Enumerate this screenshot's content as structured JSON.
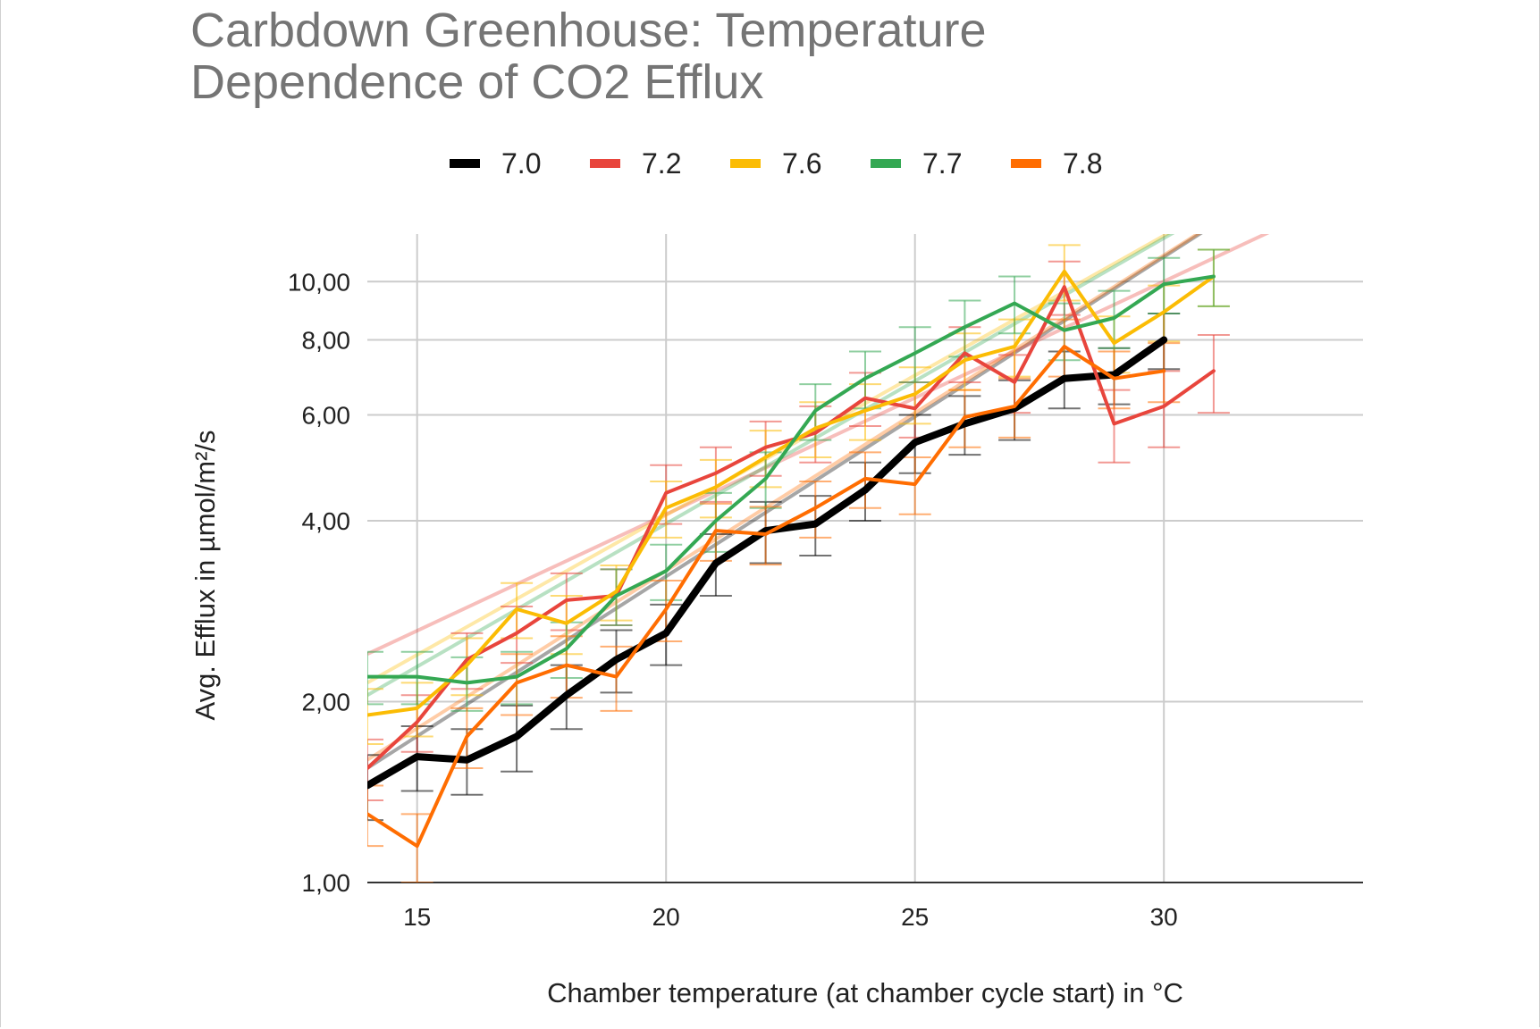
{
  "chart_data": {
    "type": "line",
    "title_lines": [
      "Carbdown Greenhouse: Temperature",
      "Dependence of CO2 Efflux"
    ],
    "xlabel": "Chamber temperature (at chamber cycle start) in °C",
    "ylabel": "Avg. Efflux in µmol/m²/s",
    "x_scale": "linear",
    "y_scale": "log",
    "xlim": [
      14,
      34
    ],
    "ylim": [
      1.0,
      12.0
    ],
    "x_ticks": [
      15,
      20,
      25,
      30
    ],
    "x_tick_labels": [
      "15",
      "20",
      "25",
      "30"
    ],
    "y_ticks": [
      1,
      2,
      4,
      6,
      8,
      10
    ],
    "y_tick_labels": [
      "1,00",
      "2,00",
      "4,00",
      "6,00",
      "8,00",
      "10,00"
    ],
    "legend_position": "top",
    "series": [
      {
        "name": "7.0",
        "color": "#000000",
        "x": [
          14,
          15,
          16,
          17,
          18,
          19,
          20,
          21,
          22,
          23,
          24,
          25,
          26,
          27,
          28,
          29,
          30
        ],
        "values": [
          1.45,
          1.62,
          1.6,
          1.75,
          2.05,
          2.35,
          2.6,
          3.4,
          3.85,
          3.95,
          4.5,
          5.4,
          5.8,
          6.15,
          6.9,
          7.0,
          8.0
        ],
        "error": [
          0.18,
          0.2,
          0.2,
          0.22,
          0.25,
          0.28,
          0.3,
          0.4,
          0.45,
          0.45,
          0.5,
          0.6,
          0.65,
          0.7,
          0.75,
          0.75,
          0.85
        ],
        "trend": [
          1.55,
          17.94
        ]
      },
      {
        "name": "7.2",
        "color": "#e8453c",
        "x": [
          14,
          15,
          16,
          17,
          18,
          19,
          20,
          21,
          22,
          23,
          24,
          25,
          26,
          27,
          28,
          29,
          30,
          31
        ],
        "values": [
          1.55,
          1.85,
          2.35,
          2.6,
          2.95,
          3.0,
          4.45,
          4.8,
          5.3,
          5.6,
          6.4,
          6.15,
          7.6,
          6.8,
          9.8,
          5.8,
          6.2,
          7.1
        ],
        "error": [
          0.18,
          0.2,
          0.25,
          0.28,
          0.32,
          0.32,
          0.5,
          0.5,
          0.55,
          0.6,
          0.65,
          0.65,
          0.8,
          0.75,
          1.0,
          0.8,
          0.9,
          1.05
        ],
        "trend": [
          2.4,
          14.3
        ]
      },
      {
        "name": "7.6",
        "color": "#fbbc04",
        "x": [
          14,
          15,
          16,
          17,
          18,
          19,
          20,
          21,
          22,
          23,
          24,
          25,
          26,
          27,
          28,
          29,
          30,
          31
        ],
        "values": [
          1.9,
          1.95,
          2.3,
          2.85,
          2.7,
          3.05,
          4.2,
          4.55,
          5.1,
          5.7,
          6.1,
          6.5,
          7.4,
          7.8,
          10.4,
          7.9,
          8.9,
          10.2
        ],
        "error": [
          0.2,
          0.2,
          0.25,
          0.3,
          0.3,
          0.32,
          0.45,
          0.5,
          0.55,
          0.6,
          0.65,
          0.7,
          0.8,
          0.85,
          1.1,
          0.85,
          0.95,
          1.1
        ],
        "trend": [
          2.15,
          18.3
        ]
      },
      {
        "name": "7.7",
        "color": "#34a853",
        "x": [
          14,
          15,
          16,
          17,
          18,
          19,
          20,
          21,
          22,
          23,
          24,
          25,
          26,
          27,
          28,
          29,
          30,
          31
        ],
        "values": [
          2.2,
          2.2,
          2.15,
          2.2,
          2.45,
          3.0,
          3.3,
          4.0,
          4.7,
          6.1,
          6.9,
          7.6,
          8.4,
          9.2,
          8.3,
          8.7,
          9.9,
          10.2
        ],
        "error": [
          0.22,
          0.22,
          0.22,
          0.22,
          0.26,
          0.32,
          0.35,
          0.45,
          0.5,
          0.65,
          0.75,
          0.8,
          0.9,
          1.0,
          0.9,
          0.95,
          1.05,
          1.1
        ],
        "trend": [
          2.05,
          18.3
        ]
      },
      {
        "name": "7.8",
        "color": "#ff6d01",
        "x": [
          14,
          15,
          16,
          17,
          18,
          19,
          20,
          21,
          22,
          23,
          24,
          25,
          26,
          27,
          28,
          29,
          30
        ],
        "values": [
          1.3,
          1.15,
          1.75,
          2.15,
          2.3,
          2.2,
          2.85,
          3.85,
          3.8,
          4.2,
          4.7,
          4.6,
          5.95,
          6.2,
          7.8,
          6.9,
          7.1
        ],
        "error": [
          0.15,
          0.15,
          0.2,
          0.25,
          0.27,
          0.27,
          0.33,
          0.42,
          0.42,
          0.45,
          0.5,
          0.5,
          0.65,
          0.7,
          0.85,
          0.75,
          0.8
        ],
        "trend": [
          1.6,
          17.94
        ]
      }
    ]
  }
}
